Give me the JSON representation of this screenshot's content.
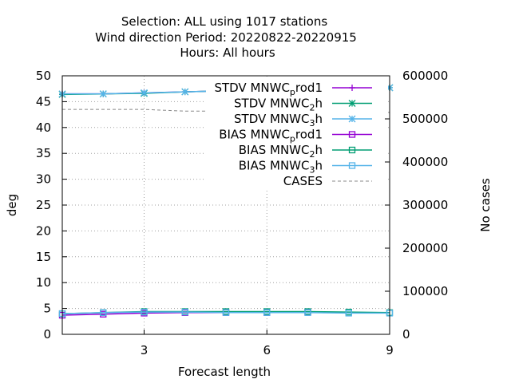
{
  "chart_data": {
    "type": "line",
    "title_lines": [
      "Selection: ALL using  1017 stations",
      "Wind direction   Period: 20220822-20220915",
      "Hours:  All hours"
    ],
    "xlabel": "Forecast length",
    "ylabel": "deg",
    "y2label": "No cases",
    "xlim": [
      1,
      9
    ],
    "ylim": [
      0,
      50
    ],
    "y2lim": [
      0,
      600000
    ],
    "xticks": [
      3,
      6,
      9
    ],
    "yticks": [
      0,
      5,
      10,
      15,
      20,
      25,
      30,
      35,
      40,
      45,
      50
    ],
    "y2ticks": [
      0,
      100000,
      200000,
      300000,
      400000,
      500000,
      600000
    ],
    "grid": true,
    "legend_position": "top-right",
    "x": [
      1,
      2,
      3,
      4,
      5,
      6,
      7,
      8,
      9
    ],
    "series": [
      {
        "name": "STDV MNWC",
        "name_sub": "p",
        "name_suffix": "rod1",
        "axis": "y1",
        "color": "#9400d3",
        "marker": "plus",
        "dash": false,
        "values": [
          46.5,
          46.5,
          46.7,
          46.9,
          47.1,
          47.3,
          47.5,
          47.7,
          null
        ]
      },
      {
        "name": "STDV MNWC",
        "name_sub": "2",
        "name_suffix": "h",
        "axis": "y1",
        "color": "#009e73",
        "marker": "star",
        "dash": false,
        "values": [
          46.4,
          46.5,
          46.6,
          46.9,
          47.1,
          47.3,
          47.4,
          47.6,
          47.7
        ]
      },
      {
        "name": "STDV MNWC",
        "name_sub": "3",
        "name_suffix": "h",
        "axis": "y1",
        "color": "#56b4e9",
        "marker": "star",
        "dash": false,
        "values": [
          46.5,
          46.5,
          46.7,
          46.9,
          47.1,
          47.2,
          47.4,
          47.6,
          47.7
        ]
      },
      {
        "name": "BIAS MNWC",
        "name_sub": "p",
        "name_suffix": "rod1",
        "axis": "y1",
        "color": "#9400d3",
        "marker": "square",
        "dash": false,
        "values": [
          3.7,
          3.9,
          4.1,
          4.2,
          4.2,
          4.2,
          4.3,
          null,
          null
        ]
      },
      {
        "name": "BIAS MNWC",
        "name_sub": "2",
        "name_suffix": "h",
        "axis": "y1",
        "color": "#009e73",
        "marker": "square",
        "dash": false,
        "values": [
          4.0,
          4.2,
          4.4,
          4.4,
          4.4,
          4.4,
          4.4,
          4.3,
          4.2
        ]
      },
      {
        "name": "BIAS MNWC",
        "name_sub": "3",
        "name_suffix": "h",
        "axis": "y1",
        "color": "#56b4e9",
        "marker": "square",
        "dash": false,
        "values": [
          4.0,
          4.2,
          4.3,
          4.3,
          4.2,
          4.2,
          4.2,
          4.1,
          4.1
        ]
      },
      {
        "name": "CASES",
        "name_sub": "",
        "name_suffix": "",
        "axis": "y2",
        "color": "#888888",
        "marker": "none",
        "dash": true,
        "values": [
          522000,
          522000,
          522000,
          518000,
          518000,
          518000,
          516000,
          516000,
          515000
        ]
      }
    ]
  }
}
